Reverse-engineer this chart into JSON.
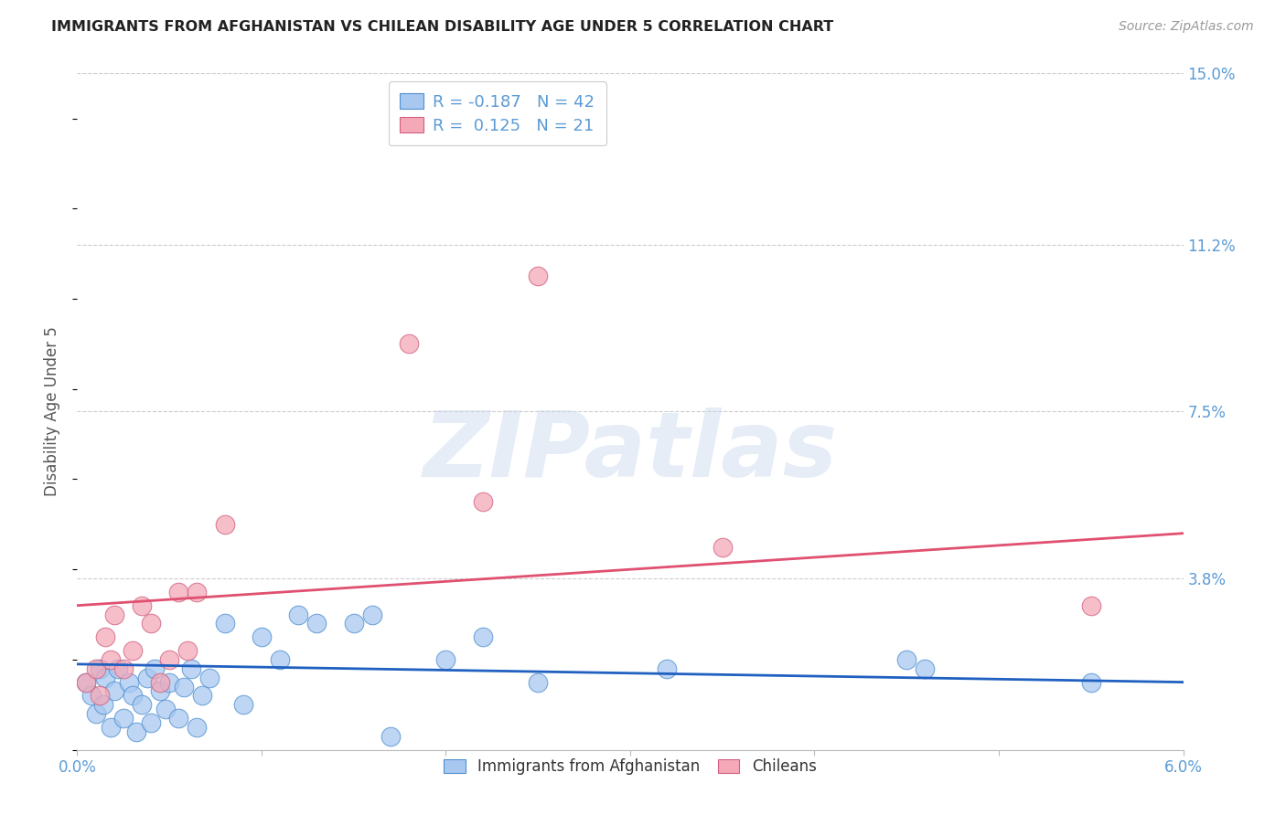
{
  "title": "IMMIGRANTS FROM AFGHANISTAN VS CHILEAN DISABILITY AGE UNDER 5 CORRELATION CHART",
  "source": "Source: ZipAtlas.com",
  "ylabel": "Disability Age Under 5",
  "xlim": [
    0.0,
    6.0
  ],
  "ylim": [
    0.0,
    15.0
  ],
  "xticks": [
    0.0,
    1.0,
    2.0,
    3.0,
    4.0,
    5.0,
    6.0
  ],
  "xticklabels": [
    "0.0%",
    "",
    "",
    "",
    "",
    "",
    "6.0%"
  ],
  "yticks": [
    0.0,
    3.8,
    7.5,
    11.2,
    15.0
  ],
  "yticklabels": [
    "",
    "3.8%",
    "7.5%",
    "11.2%",
    "15.0%"
  ],
  "blue_R": -0.187,
  "blue_N": 42,
  "pink_R": 0.125,
  "pink_N": 21,
  "blue_color": "#a8c8f0",
  "pink_color": "#f4a8b8",
  "blue_line_color": "#2060c0",
  "pink_line_color": "#e05070",
  "grid_color": "#cccccc",
  "blue_scatter_x": [
    0.05,
    0.08,
    0.1,
    0.12,
    0.14,
    0.15,
    0.18,
    0.2,
    0.22,
    0.25,
    0.28,
    0.3,
    0.32,
    0.35,
    0.38,
    0.4,
    0.42,
    0.45,
    0.48,
    0.5,
    0.55,
    0.58,
    0.62,
    0.65,
    0.68,
    0.72,
    0.8,
    0.9,
    1.0,
    1.1,
    1.2,
    1.3,
    1.5,
    1.6,
    1.7,
    2.0,
    2.2,
    2.5,
    3.2,
    4.5,
    4.6,
    5.5
  ],
  "blue_scatter_y": [
    1.5,
    1.2,
    0.8,
    1.8,
    1.0,
    1.6,
    0.5,
    1.3,
    1.8,
    0.7,
    1.5,
    1.2,
    0.4,
    1.0,
    1.6,
    0.6,
    1.8,
    1.3,
    0.9,
    1.5,
    0.7,
    1.4,
    1.8,
    0.5,
    1.2,
    1.6,
    2.8,
    1.0,
    2.5,
    2.0,
    3.0,
    2.8,
    2.8,
    3.0,
    0.3,
    2.0,
    2.5,
    1.5,
    1.8,
    2.0,
    1.8,
    1.5
  ],
  "pink_scatter_x": [
    0.05,
    0.1,
    0.12,
    0.15,
    0.18,
    0.2,
    0.25,
    0.3,
    0.35,
    0.4,
    0.45,
    0.5,
    0.55,
    0.6,
    0.65,
    0.8,
    1.8,
    2.2,
    2.5,
    3.5,
    5.5
  ],
  "pink_scatter_y": [
    1.5,
    1.8,
    1.2,
    2.5,
    2.0,
    3.0,
    1.8,
    2.2,
    3.2,
    2.8,
    1.5,
    2.0,
    3.5,
    2.2,
    3.5,
    5.0,
    9.0,
    5.5,
    10.5,
    4.5,
    3.2
  ],
  "blue_line_x0": 0.0,
  "blue_line_y0": 1.9,
  "blue_line_x1": 6.0,
  "blue_line_y1": 1.5,
  "pink_line_x0": 0.0,
  "pink_line_y0": 3.2,
  "pink_line_x1": 6.0,
  "pink_line_y1": 4.8
}
